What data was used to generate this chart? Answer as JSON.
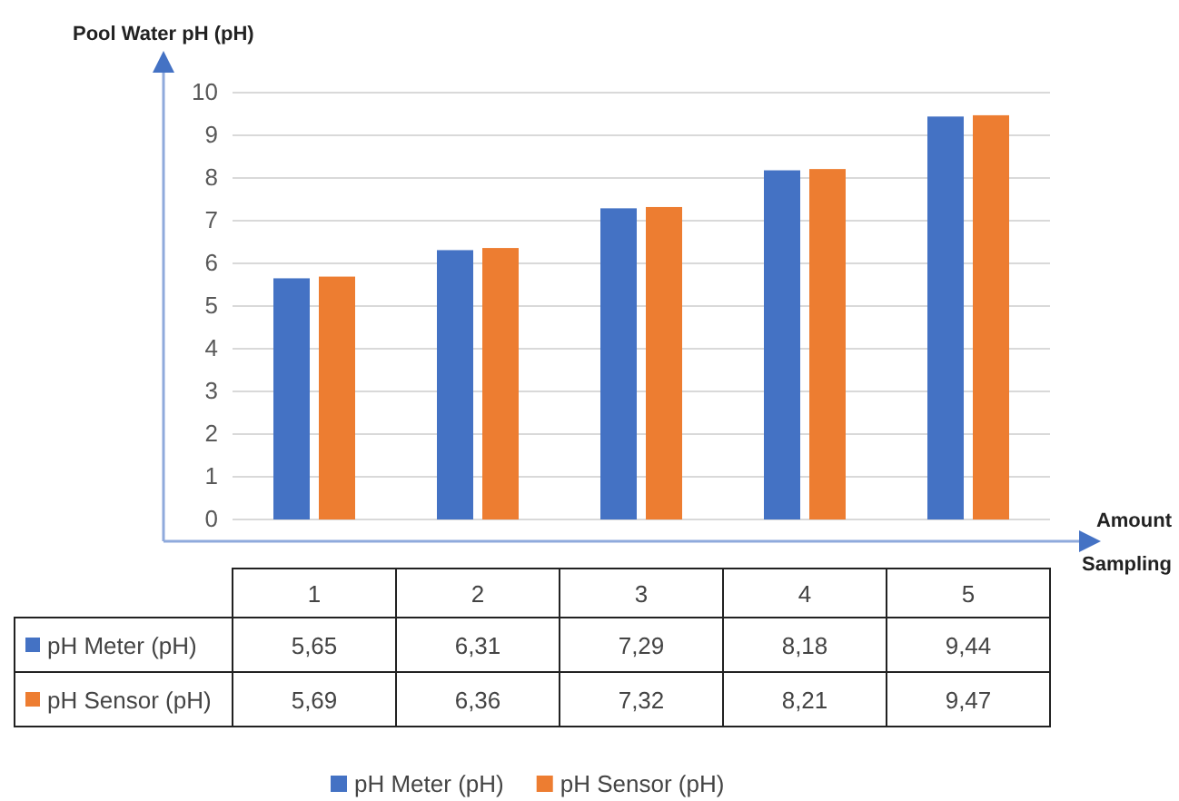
{
  "chart_data": {
    "type": "bar",
    "ylabel": "Pool Water pH (pH)",
    "xlabel": "Amount Sampling",
    "categories": [
      "1",
      "2",
      "3",
      "4",
      "5"
    ],
    "series": [
      {
        "name": "pH Meter (pH)",
        "color": "#4472c4",
        "values": [
          5.65,
          6.31,
          7.29,
          8.18,
          9.44
        ],
        "value_labels": [
          "5,65",
          "6,31",
          "7,29",
          "8,18",
          "9,44"
        ]
      },
      {
        "name": "pH Sensor (pH)",
        "color": "#ed7d31",
        "values": [
          5.69,
          6.36,
          7.32,
          8.21,
          9.47
        ],
        "value_labels": [
          "5,69",
          "6,36",
          "7,32",
          "8,21",
          "9,47"
        ]
      }
    ],
    "ylim": [
      0,
      10
    ],
    "yticks": [
      0,
      1,
      2,
      3,
      4,
      5,
      6,
      7,
      8,
      9,
      10
    ],
    "grid": "y",
    "legend": "bottom"
  }
}
